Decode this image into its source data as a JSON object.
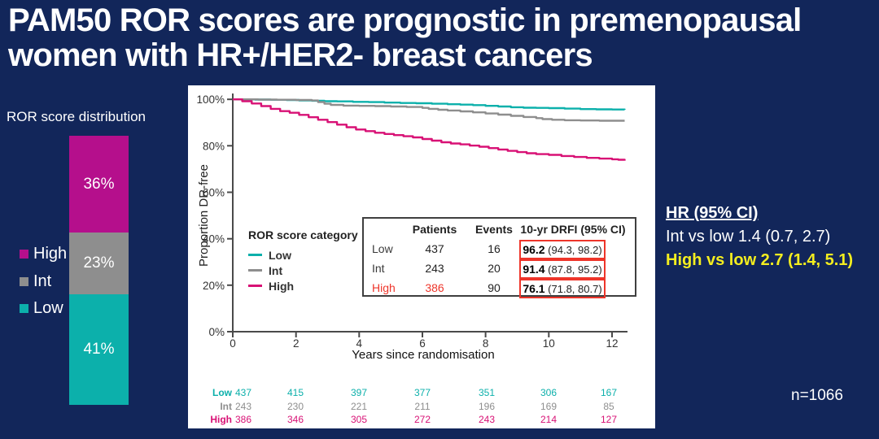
{
  "slide": {
    "title_line1": "PAM50 ROR scores are prognostic in premenopausal",
    "title_line2": "women with HR+/HER2- breast cancers",
    "n_label": "n=1066",
    "colors": {
      "background": "#12265a",
      "teal": "#0cb0ab",
      "bar_magenta": "#b50f8c",
      "curve_magenta": "#d81175",
      "gray": "#8e8e8e",
      "highlight_red": "#ee352a",
      "accent_yellow": "#f4ee1f"
    }
  },
  "hr_panel": {
    "title": "HR (95% CI)",
    "int_line": "Int vs low 1.4 (0.7, 2.7)",
    "high_line": "High vs low 2.7 (1.4, 5.1)"
  },
  "chart_data": [
    {
      "type": "bar",
      "subtype": "single-stacked-column",
      "title": "ROR score distribution",
      "segments": [
        {
          "label": "High",
          "value_pct": 36,
          "text": "36%",
          "color": "#b50f8c"
        },
        {
          "label": "Int",
          "value_pct": 23,
          "text": "23%",
          "color": "#8e8e8e"
        },
        {
          "label": "Low",
          "value_pct": 41,
          "text": "41%",
          "color": "#0cb0ab"
        }
      ],
      "legend_position": "left"
    },
    {
      "type": "line",
      "subtype": "kaplan-meier-step",
      "xlabel": "Years since randomisation",
      "ylabel": "Proportion DR-free",
      "xlim": [
        0,
        12.5
      ],
      "ylim": [
        0,
        100
      ],
      "xticks": [
        0,
        2,
        4,
        6,
        8,
        10,
        12
      ],
      "yticks": [
        0,
        20,
        40,
        60,
        80,
        100
      ],
      "ytick_suffix": "%",
      "grid": false,
      "legend_title": "ROR score category",
      "legend_position": "inside-left-middle",
      "series": [
        {
          "name": "Low",
          "color": "#0cb0ab",
          "x": [
            0,
            0.7,
            1.2,
            1.7,
            2.1,
            2.5,
            2.9,
            3.3,
            3.8,
            4.3,
            4.8,
            5.3,
            5.8,
            6.3,
            6.8,
            7.2,
            7.6,
            8.0,
            8.4,
            8.8,
            9.2,
            9.6,
            10.0,
            10.5,
            11.0,
            11.5,
            12.0,
            12.4
          ],
          "y": [
            100,
            99.9,
            99.8,
            99.7,
            99.5,
            99.4,
            99.2,
            99.1,
            98.9,
            98.8,
            98.6,
            98.4,
            98.3,
            98.1,
            97.9,
            97.7,
            97.5,
            97.2,
            96.9,
            96.6,
            96.4,
            96.3,
            96.2,
            96.0,
            95.8,
            95.7,
            95.6,
            95.5
          ]
        },
        {
          "name": "Int",
          "color": "#8e8e8e",
          "x": [
            0,
            0.8,
            1.4,
            2.0,
            2.5,
            2.7,
            2.9,
            3.1,
            3.5,
            4.0,
            4.5,
            5.0,
            5.5,
            6.0,
            6.2,
            6.5,
            6.8,
            7.2,
            7.6,
            8.0,
            8.4,
            8.8,
            9.2,
            9.6,
            9.8,
            10.1,
            10.5,
            11.0,
            11.6,
            12.4
          ],
          "y": [
            100,
            99.9,
            99.8,
            99.7,
            99.5,
            98.8,
            98.1,
            97.6,
            97.3,
            97.2,
            97.1,
            96.9,
            96.7,
            96.3,
            95.9,
            95.5,
            95.2,
            94.8,
            94.4,
            93.9,
            93.4,
            92.9,
            92.4,
            91.9,
            91.5,
            91.2,
            91.0,
            90.9,
            90.8,
            90.8
          ]
        },
        {
          "name": "High",
          "color": "#d81175",
          "x": [
            0,
            0.3,
            0.6,
            0.9,
            1.2,
            1.5,
            1.8,
            2.1,
            2.4,
            2.7,
            3.0,
            3.3,
            3.6,
            3.9,
            4.2,
            4.5,
            4.8,
            5.1,
            5.4,
            5.7,
            6.0,
            6.3,
            6.6,
            6.9,
            7.2,
            7.5,
            7.8,
            8.1,
            8.4,
            8.7,
            9.0,
            9.3,
            9.6,
            10.0,
            10.4,
            10.8,
            11.2,
            11.6,
            12.0,
            12.2,
            12.4
          ],
          "y": [
            100,
            99.2,
            98.2,
            97.1,
            95.9,
            94.9,
            94.2,
            93.3,
            92.3,
            91.2,
            90.2,
            89.1,
            88.0,
            87.0,
            86.3,
            85.6,
            85.1,
            84.6,
            84.1,
            83.6,
            82.9,
            82.2,
            81.5,
            81.0,
            80.6,
            80.1,
            79.6,
            79.0,
            78.4,
            77.8,
            77.3,
            76.8,
            76.4,
            76.1,
            75.6,
            75.2,
            74.8,
            74.5,
            74.2,
            74.0,
            73.6
          ]
        }
      ],
      "inset_table": {
        "headers": [
          "",
          "Patients",
          "Events",
          "10-yr DRFI (95% CI)"
        ],
        "rows": [
          {
            "label": "Low",
            "patients": "437",
            "events": "16",
            "drfi_value": "96.2",
            "drfi_ci": "(94.3, 98.2)",
            "red_label": false
          },
          {
            "label": "Int",
            "patients": "243",
            "events": "20",
            "drfi_value": "91.4",
            "drfi_ci": "(87.8, 95.2)",
            "red_label": false
          },
          {
            "label": "High",
            "patients": "386",
            "events": "90",
            "drfi_value": "76.1",
            "drfi_ci": "(71.8, 80.7)",
            "red_label": true
          }
        ],
        "highlight_box_color": "#ee352a"
      },
      "risk_table": {
        "times": [
          0,
          2,
          4,
          6,
          8,
          10,
          12
        ],
        "rows": [
          {
            "label": "Low",
            "color": "#0cb0ab",
            "values": [
              "437",
              "415",
              "397",
              "377",
              "351",
              "306",
              "167"
            ]
          },
          {
            "label": "Int",
            "color": "#8e8e8e",
            "values": [
              "243",
              "230",
              "221",
              "211",
              "196",
              "169",
              "85"
            ]
          },
          {
            "label": "High",
            "color": "#d81175",
            "values": [
              "386",
              "346",
              "305",
              "272",
              "243",
              "214",
              "127"
            ]
          }
        ]
      }
    }
  ]
}
